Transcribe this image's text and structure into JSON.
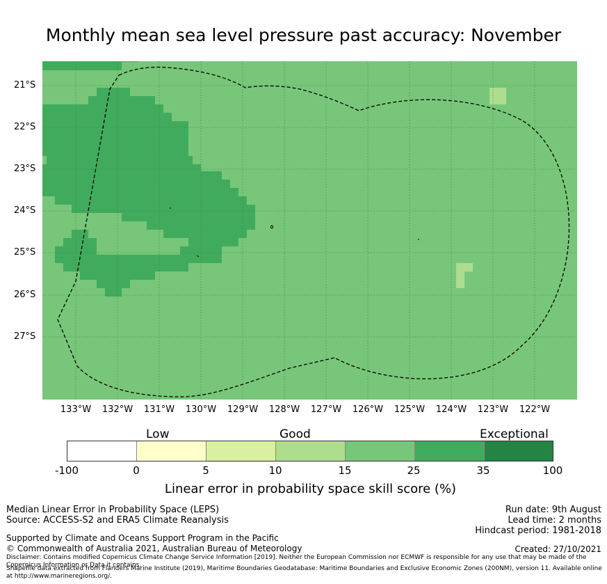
{
  "title": "Monthly mean sea level pressure past accuracy: November",
  "map": {
    "lat_labels": [
      "21°S",
      "22°S",
      "23°S",
      "24°S",
      "25°S",
      "26°S",
      "27°S"
    ],
    "lon_labels": [
      "133°W",
      "132°W",
      "131°W",
      "130°W",
      "129°W",
      "128°W",
      "127°W",
      "126°W",
      "125°W",
      "124°W",
      "123°W",
      "122°W"
    ],
    "colors": {
      "band_15_25": "#78c679",
      "band_25_35": "#41ab5d",
      "band_10_15": "#addd8e",
      "eez_boundary": "#000000"
    }
  },
  "colorbar": {
    "categories": [
      "Low",
      "Good",
      "Exceptional"
    ],
    "ticks": [
      "-100",
      "0",
      "5",
      "10",
      "15",
      "25",
      "35",
      "100"
    ],
    "colors": [
      "#ffffff",
      "#ffffcc",
      "#d9f0a3",
      "#addd8e",
      "#78c679",
      "#41ab5d",
      "#238443"
    ],
    "label": "Linear error in probability space skill score (%)"
  },
  "footer": {
    "left_line1": "Median Linear Error in Probability Space (LEPS)",
    "left_line2": "Source: ACCESS-S2 and ERA5 Climate Reanalysis",
    "support": "Supported by Climate and Oceans Support Program in the Pacific",
    "copyright": "© Commonwealth of Australia 2021, Australian Bureau of Meteorology",
    "run_date": "Run date: 9th August",
    "lead_time": "Lead time: 2 months",
    "hindcast": "Hindcast period: 1981-2018",
    "created": "Created: 27/10/2021",
    "disclaimer": "Disclaimer: Contains modified Copernicus Climate Change Service Information [2019]. Neither the European Commission nor ECMWF is responsible for any use that may be made of the Copernicus Information or Data it contains.",
    "shapefile": "Shapefile data extracted from Flanders Marine Institute (2019), Maritime Boundaries Geodatabase: Maritime Boundaries and Exclusive Economic Zones (200NM), version 11. Available online at http://www.marineregions.org/."
  }
}
